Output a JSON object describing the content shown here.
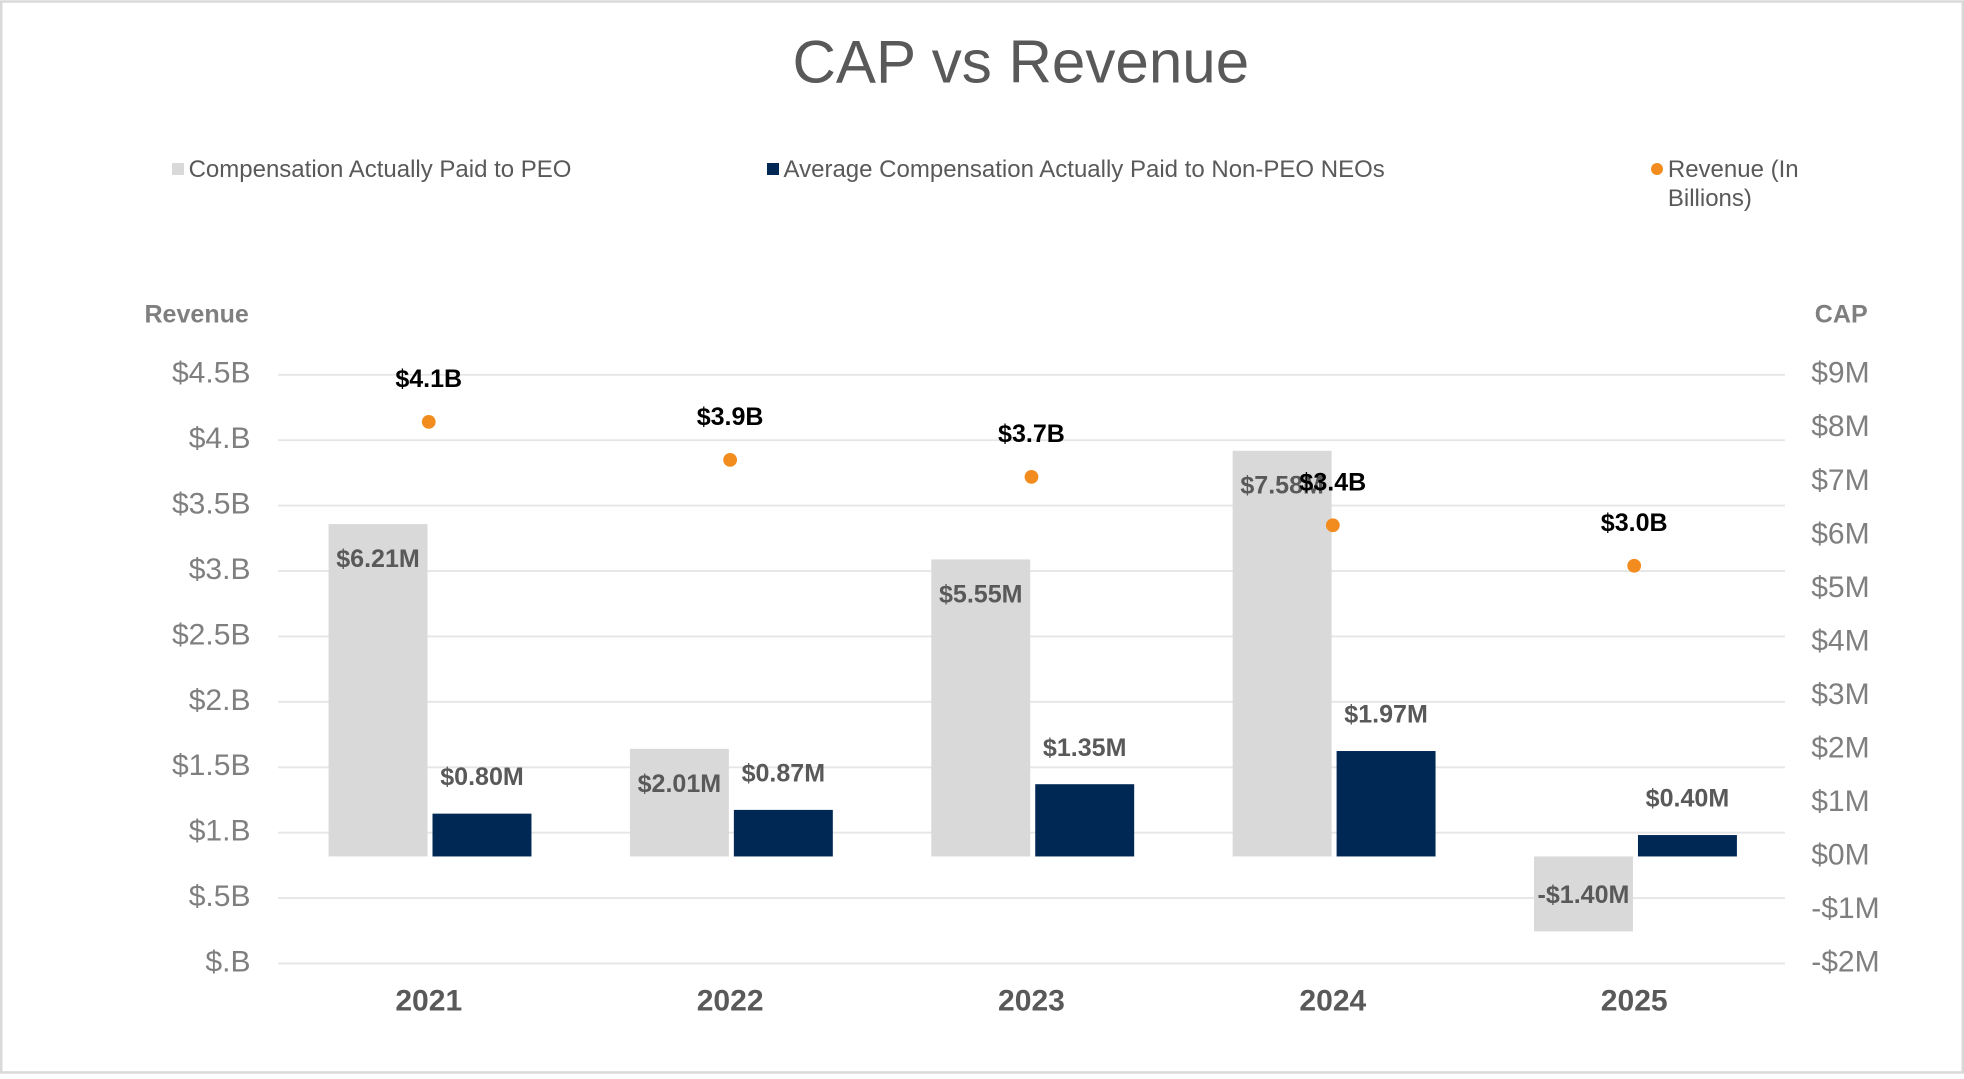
{
  "chart_data": {
    "type": "bar_scatter",
    "title": "CAP vs Revenue",
    "y_label": "Revenue",
    "y2_label": "CAP",
    "categories": [
      "2021",
      "2022",
      "2023",
      "2024",
      "2025"
    ],
    "series": [
      {
        "name": "Compensation Actually Paid to PEO",
        "type": "bar",
        "axis": "y2",
        "color": "#d9d9d9",
        "values": [
          6.21,
          2.01,
          5.55,
          7.58,
          -1.4
        ],
        "value_labels": [
          "$6.21M",
          "$2.01M",
          "$5.55M",
          "$7.58M",
          "-$1.40M"
        ]
      },
      {
        "name": "Average Compensation Actually Paid to Non-PEO NEOs",
        "type": "bar",
        "axis": "y2",
        "color": "#002855",
        "values": [
          0.8,
          0.87,
          1.35,
          1.97,
          0.4
        ],
        "value_labels": [
          "$0.80M",
          "$0.87M",
          "$1.35M",
          "$1.97M",
          "$0.40M"
        ]
      },
      {
        "name": "Revenue (In Billions)",
        "type": "scatter",
        "axis": "y",
        "color": "#f28c1e",
        "values": [
          4.14,
          3.85,
          3.72,
          3.35,
          3.04
        ],
        "value_labels": [
          "$4.1B",
          "$3.9B",
          "$3.7B",
          "$3.4B",
          "$3.0B"
        ]
      }
    ],
    "ylim": [
      0,
      4.5
    ],
    "yticks": [
      {
        "value": 0,
        "label": "$.B"
      },
      {
        "value": 0.5,
        "label": "$.5B"
      },
      {
        "value": 1,
        "label": "$1.B"
      },
      {
        "value": 1.5,
        "label": "$1.5B"
      },
      {
        "value": 2,
        "label": "$2.B"
      },
      {
        "value": 2.5,
        "label": "$2.5B"
      },
      {
        "value": 3,
        "label": "$3.B"
      },
      {
        "value": 3.5,
        "label": "$3.5B"
      },
      {
        "value": 4,
        "label": "$4.B"
      },
      {
        "value": 4.5,
        "label": "$4.5B"
      }
    ],
    "y2lim": [
      -2,
      9
    ],
    "y2ticks": [
      {
        "value": -2,
        "label": "-$2M"
      },
      {
        "value": -1,
        "label": "-$1M"
      },
      {
        "value": 0,
        "label": "$0M"
      },
      {
        "value": 1,
        "label": "$1M"
      },
      {
        "value": 2,
        "label": "$2M"
      },
      {
        "value": 3,
        "label": "$3M"
      },
      {
        "value": 4,
        "label": "$4M"
      },
      {
        "value": 5,
        "label": "$5M"
      },
      {
        "value": 6,
        "label": "$6M"
      },
      {
        "value": 7,
        "label": "$7M"
      },
      {
        "value": 8,
        "label": "$8M"
      },
      {
        "value": 9,
        "label": "$9M"
      }
    ],
    "grid": true,
    "legend": "top"
  }
}
